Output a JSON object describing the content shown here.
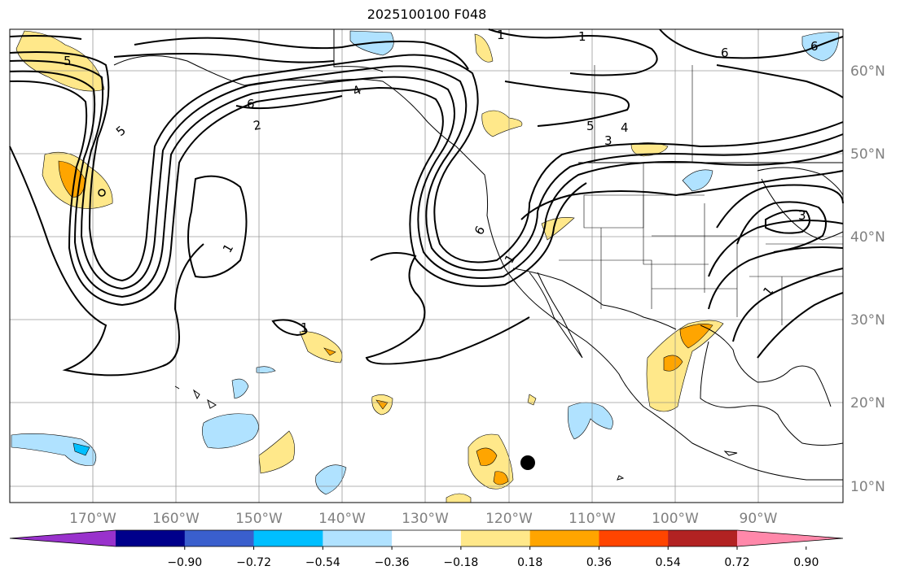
{
  "title": "2025100100 F048",
  "map": {
    "projection": "PlateCarree",
    "lon_range": [
      -180,
      -80
    ],
    "lat_range": [
      8,
      65
    ],
    "gridlines": true,
    "lon_labels": [
      "170°W",
      "160°W",
      "150°W",
      "140°W",
      "130°W",
      "120°W",
      "110°W",
      "100°W",
      "90°W"
    ],
    "lat_labels": [
      "60°N",
      "50°N",
      "40°N",
      "30°N",
      "20°N",
      "10°N"
    ],
    "contour_labels": [
      "5",
      "5",
      "1",
      "6",
      "2",
      "4",
      "1",
      "1",
      "6",
      "1",
      "5",
      "4",
      "3",
      "6",
      "3",
      "1",
      "1",
      "6"
    ],
    "marker": {
      "lon": -118,
      "lat": 12.8,
      "symbol": "filled-circle"
    }
  },
  "colorbar": {
    "ticks": [
      "−0.90",
      "−0.72",
      "−0.54",
      "−0.36",
      "−0.18",
      "0.18",
      "0.36",
      "0.54",
      "0.72",
      "0.90"
    ],
    "colors": [
      "#9932cc",
      "#00008b",
      "#3a5fcd",
      "#00bfff",
      "#b0e2ff",
      "#ffffff",
      "#ffe88a",
      "#ffa500",
      "#ff4500",
      "#b22222",
      "#ff88aa"
    ],
    "extend": "both"
  }
}
